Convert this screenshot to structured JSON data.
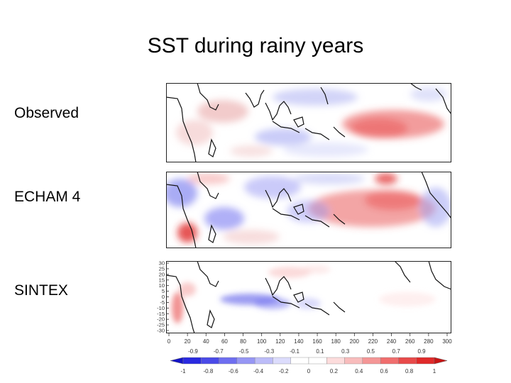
{
  "slide": {
    "title": "SST during rainy years"
  },
  "panels": [
    {
      "label": "Observed"
    },
    {
      "label": "ECHAM 4"
    },
    {
      "label": "SINTEX"
    }
  ],
  "lat_ticks": [
    "30",
    "25",
    "20",
    "15",
    "10",
    "5",
    "0",
    "-5",
    "-10",
    "-15",
    "-20",
    "-25",
    "-30"
  ],
  "lon_ticks": [
    "0",
    "20",
    "40",
    "60",
    "80",
    "100",
    "120",
    "140",
    "160",
    "180",
    "200",
    "220",
    "240",
    "260",
    "280",
    "300"
  ],
  "colorbar": {
    "upper_labels": [
      "-0.9",
      "-0.7",
      "-0.5",
      "-0.3",
      "-0.1",
      "0.1",
      "0.3",
      "0.5",
      "0.7",
      "0.9"
    ],
    "lower_labels": [
      "-1",
      "-0.8",
      "-0.6",
      "-0.4",
      "-0.2",
      "0",
      "0.2",
      "0.4",
      "0.6",
      "0.8",
      "1"
    ],
    "colors": [
      "#2a2ae0",
      "#4a4ae8",
      "#6e6ef0",
      "#9696f4",
      "#bcbcf8",
      "#dcdcfc",
      "#ffffff",
      "#ffffff",
      "#fcdcdc",
      "#f8bcbc",
      "#f49696",
      "#f06e6e",
      "#e84a4a",
      "#e02a2a"
    ]
  },
  "colors": {
    "warm": "#e8464a",
    "cool": "#4650e0",
    "coast": "#111111"
  }
}
